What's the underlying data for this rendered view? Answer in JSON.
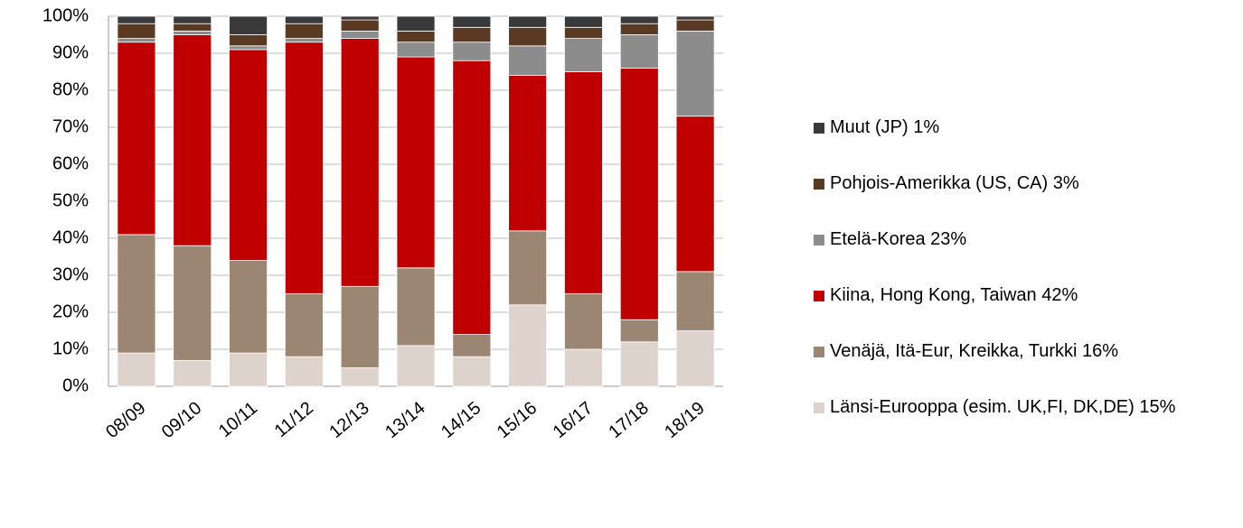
{
  "chart_data": {
    "type": "bar",
    "stacked": true,
    "categories": [
      "08/09",
      "09/10",
      "10/11",
      "11/12",
      "12/13",
      "13/14",
      "14/15",
      "15/16",
      "16/17",
      "17/18",
      "18/19"
    ],
    "series": [
      {
        "name": "Länsi-Eurooppa (esim. UK,FI, DK,DE) 15%",
        "color": "#ddd3cc",
        "values": [
          9,
          7,
          9,
          8,
          5,
          11,
          8,
          22,
          10,
          12,
          15
        ]
      },
      {
        "name": "Venäjä, Itä-Eur, Kreikka, Turkki 16%",
        "color": "#9b8573",
        "values": [
          32,
          31,
          25,
          17,
          22,
          21,
          6,
          20,
          15,
          6,
          16
        ]
      },
      {
        "name": "Kiina, Hong Kong, Taiwan 42%",
        "color": "#c00000",
        "values": [
          52,
          57,
          57,
          68,
          67,
          57,
          74,
          42,
          60,
          68,
          42
        ]
      },
      {
        "name": "Etelä-Korea 23%",
        "color": "#8c8c8c",
        "values": [
          1,
          1,
          1,
          1,
          2,
          4,
          5,
          8,
          9,
          9,
          23
        ]
      },
      {
        "name": "Pohjois-Amerikka (US, CA) 3%",
        "color": "#5a3a22",
        "values": [
          4,
          2,
          3,
          4,
          3,
          3,
          4,
          5,
          3,
          3,
          3
        ]
      },
      {
        "name": "Muut (JP) 1%",
        "color": "#3a3a3a",
        "values": [
          2,
          2,
          5,
          2,
          1,
          4,
          3,
          3,
          3,
          2,
          1
        ]
      }
    ],
    "ylim": [
      0,
      100
    ],
    "yticks": [
      {
        "value": 0,
        "label": "0%"
      },
      {
        "value": 10,
        "label": "10%"
      },
      {
        "value": 20,
        "label": "20%"
      },
      {
        "value": 30,
        "label": "30%"
      },
      {
        "value": 40,
        "label": "40%"
      },
      {
        "value": 50,
        "label": "50%"
      },
      {
        "value": 60,
        "label": "60%"
      },
      {
        "value": 70,
        "label": "70%"
      },
      {
        "value": 80,
        "label": "80%"
      },
      {
        "value": 90,
        "label": "90%"
      },
      {
        "value": 100,
        "label": "100%"
      }
    ],
    "grid": true
  }
}
